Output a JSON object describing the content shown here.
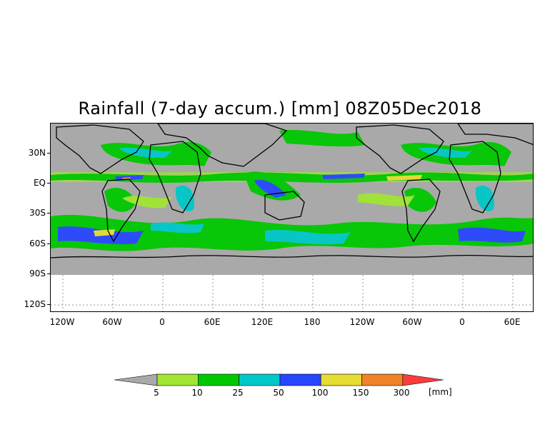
{
  "map": {
    "title": "Rainfall (7-day accum.) [mm] 08Z05Dec2018",
    "lat_labels": [
      "30N",
      "EQ",
      "30S",
      "60S",
      "90S",
      "120S"
    ],
    "lon_labels": [
      "120W",
      "60W",
      "0",
      "60E",
      "120E",
      "180",
      "120W",
      "60W",
      "0",
      "60E"
    ],
    "background_color": "#a9a9a9",
    "no_data_color": "#ffffff"
  },
  "legend": {
    "units": "[mm]",
    "thresholds": [
      "5",
      "10",
      "25",
      "50",
      "100",
      "150",
      "300"
    ],
    "colors": [
      "#a9a9a9",
      "#a0e632",
      "#00c800",
      "#00c8c8",
      "#2846ff",
      "#e6dc32",
      "#f08228",
      "#fa3c3c"
    ]
  }
}
